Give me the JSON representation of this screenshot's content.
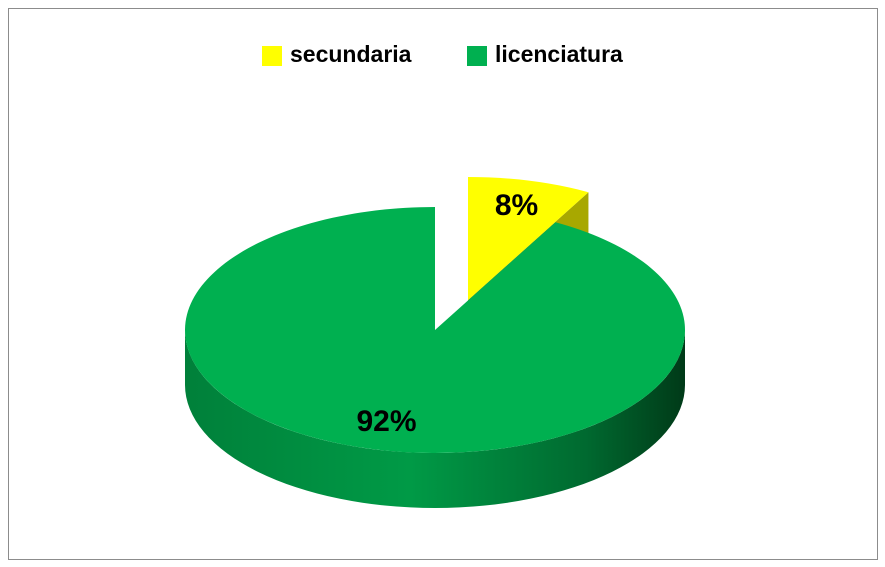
{
  "chart_data": {
    "type": "pie",
    "categories": [
      "secundaria",
      "licenciatura"
    ],
    "values": [
      8,
      92
    ],
    "value_labels": [
      "8%",
      "92%"
    ],
    "colors": [
      "#ffff00",
      "#00b050"
    ],
    "legend": "top"
  }
}
